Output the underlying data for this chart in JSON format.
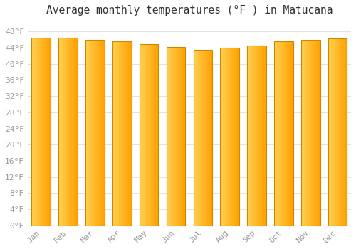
{
  "months": [
    "Jan",
    "Feb",
    "Mar",
    "Apr",
    "May",
    "Jun",
    "Jul",
    "Aug",
    "Sep",
    "Oct",
    "Nov",
    "Dec"
  ],
  "values": [
    46.4,
    46.4,
    46.0,
    45.5,
    44.8,
    44.1,
    43.5,
    44.0,
    44.6,
    45.5,
    46.0,
    46.2
  ],
  "bar_color_left": "#FFD060",
  "bar_color_right": "#FFA500",
  "bar_border_color": "#CC8800",
  "title": "Average monthly temperatures (°F ) in Matucana",
  "ylim": [
    0,
    50
  ],
  "ytick_values": [
    0,
    4,
    8,
    12,
    16,
    20,
    24,
    28,
    32,
    36,
    40,
    44,
    48
  ],
  "background_color": "#ffffff",
  "plot_bg_color": "#ffffff",
  "grid_color": "#dddddd",
  "title_fontsize": 10.5,
  "tick_fontsize": 8,
  "tick_color": "#999999"
}
